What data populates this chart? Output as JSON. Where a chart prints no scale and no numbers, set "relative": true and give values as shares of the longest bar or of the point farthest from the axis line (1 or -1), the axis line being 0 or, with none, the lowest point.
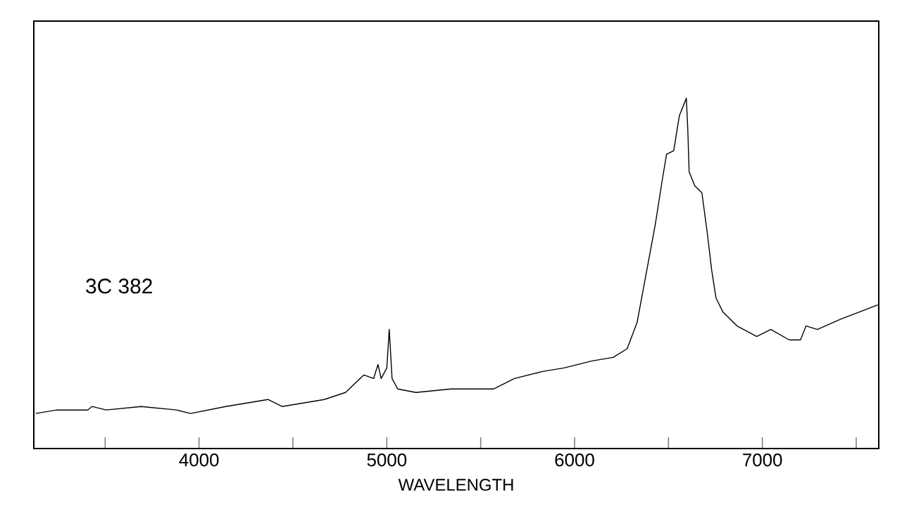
{
  "chart_data": {
    "type": "line",
    "xlabel": "WAVELENGTH",
    "annotations": [
      "3C 382"
    ],
    "relative": true,
    "tick_labels": "x",
    "marker": "none",
    "line_style": "solid",
    "xlim": [
      3120,
      7620
    ],
    "xticks": [
      {
        "value": 3500,
        "label": null
      },
      4000,
      {
        "value": 4500,
        "label": null
      },
      5000,
      {
        "value": 5500,
        "label": null
      },
      6000,
      {
        "value": 6500,
        "label": null
      },
      7000,
      {
        "value": 7500,
        "label": null
      }
    ],
    "series": [
      {
        "color": "#000000",
        "x": [
          3130,
          3242,
          3407,
          3430,
          3505,
          3692,
          3880,
          3955,
          4142,
          4367,
          4442,
          4667,
          4780,
          4878,
          4930,
          4953,
          4970,
          5000,
          5013,
          5028,
          5058,
          5155,
          5343,
          5568,
          5680,
          5830,
          5943,
          6093,
          6205,
          6280,
          6333,
          6378,
          6430,
          6468,
          6490,
          6528,
          6558,
          6588,
          6595,
          6603,
          6610,
          6640,
          6678,
          6708,
          6730,
          6753,
          6790,
          6865,
          6970,
          7045,
          7143,
          7203,
          7233,
          7293,
          7420,
          7518,
          7615
        ],
        "values": [
          0.1,
          0.11,
          0.11,
          0.12,
          0.11,
          0.12,
          0.11,
          0.1,
          0.12,
          0.14,
          0.12,
          0.14,
          0.16,
          0.21,
          0.2,
          0.24,
          0.2,
          0.23,
          0.34,
          0.2,
          0.17,
          0.16,
          0.17,
          0.17,
          0.2,
          0.22,
          0.23,
          0.25,
          0.26,
          0.285,
          0.36,
          0.49,
          0.64,
          0.77,
          0.84,
          0.85,
          0.95,
          0.99,
          1.0,
          0.91,
          0.79,
          0.75,
          0.73,
          0.61,
          0.51,
          0.43,
          0.39,
          0.35,
          0.32,
          0.34,
          0.31,
          0.31,
          0.35,
          0.34,
          0.37,
          0.39,
          0.41
        ]
      }
    ]
  }
}
